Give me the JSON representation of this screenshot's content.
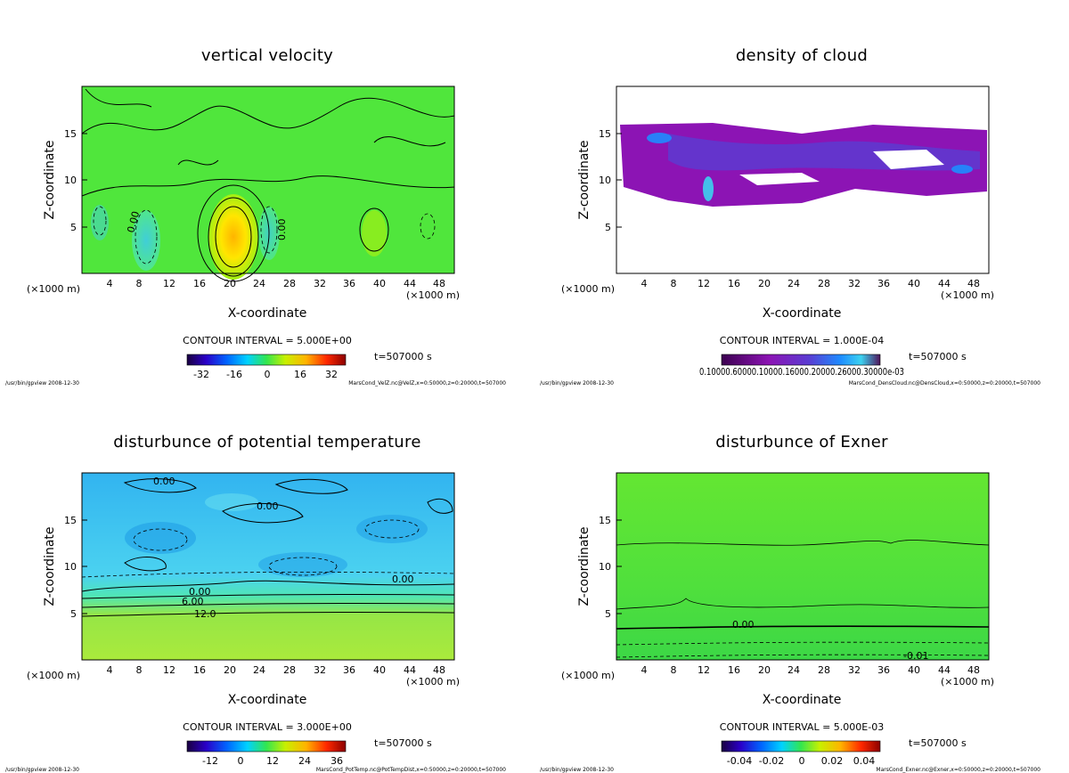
{
  "chart_data": [
    {
      "type": "heatmap",
      "title": "vertical velocity",
      "xlabel": "X-coordinate",
      "ylabel": "Z-coordinate",
      "x_unit_label": "(×1000 m)",
      "xlim": [
        0,
        50
      ],
      "ylim": [
        0,
        20
      ],
      "x_ticks": [
        "4",
        "8",
        "12",
        "16",
        "20",
        "24",
        "28",
        "32",
        "36",
        "40",
        "44",
        "48"
      ],
      "y_ticks": [
        "5",
        "10",
        "15"
      ],
      "contour_interval": "CONTOUR INTERVAL = 5.000E+00",
      "time_label": "t=507000 s",
      "colorbar_ticks": [
        "-32",
        "-16",
        "0",
        "16",
        "32"
      ],
      "contour_labels": [
        "0.00",
        "0.00"
      ],
      "colormap": "rainbow",
      "background_color": "#4ee63c",
      "footer_left": "/usr/bin/gpview  2008-12-30",
      "footer_right": "MarsCond_VelZ.nc@VelZ,x=0:50000,z=0:20000,t=507000"
    },
    {
      "type": "heatmap",
      "title": "density of cloud",
      "xlabel": "X-coordinate",
      "ylabel": "Z-coordinate",
      "x_unit_label": "(×1000 m)",
      "xlim": [
        0,
        50
      ],
      "ylim": [
        0,
        20
      ],
      "x_ticks": [
        "4",
        "8",
        "12",
        "16",
        "20",
        "24",
        "28",
        "32",
        "36",
        "40",
        "44",
        "48"
      ],
      "y_ticks": [
        "5",
        "10",
        "15"
      ],
      "contour_interval": "CONTOUR INTERVAL = 1.000E-04",
      "time_label": "t=507000 s",
      "colorbar_tick_text": "0.10000.60000.10000.16000.20000.26000.30000e-03",
      "colormap": "purple-blue",
      "background_color": "#ffffff",
      "footer_left": "/usr/bin/gpview  2008-12-30",
      "footer_right": "MarsCond_DensCloud.nc@DensCloud,x=0:50000,z=0:20000,t=507000"
    },
    {
      "type": "heatmap",
      "title": "disturbunce of potential temperature",
      "xlabel": "X-coordinate",
      "ylabel": "Z-coordinate",
      "x_unit_label": "(×1000 m)",
      "xlim": [
        0,
        50
      ],
      "ylim": [
        0,
        20
      ],
      "x_ticks": [
        "4",
        "8",
        "12",
        "16",
        "20",
        "24",
        "28",
        "32",
        "36",
        "40",
        "44",
        "48"
      ],
      "y_ticks": [
        "5",
        "10",
        "15"
      ],
      "contour_interval": "CONTOUR INTERVAL = 3.000E+00",
      "time_label": "t=507000 s",
      "colorbar_ticks": [
        "-12",
        "0",
        "12",
        "24",
        "36"
      ],
      "contour_labels": [
        "0.00",
        "0.00",
        "0.00",
        "0.00",
        "6.00",
        "12.0"
      ],
      "colormap": "rainbow",
      "background_color": "#3cc8f0",
      "footer_left": "/usr/bin/gpview  2008-12-30",
      "footer_right": "MarsCond_PotTemp.nc@PotTempDist,x=0:50000,z=0:20000,t=507000"
    },
    {
      "type": "heatmap",
      "title": "disturbunce of Exner",
      "xlabel": "X-coordinate",
      "ylabel": "Z-coordinate",
      "x_unit_label": "(×1000 m)",
      "xlim": [
        0,
        50
      ],
      "ylim": [
        0,
        20
      ],
      "x_ticks": [
        "4",
        "8",
        "12",
        "16",
        "20",
        "24",
        "28",
        "32",
        "36",
        "40",
        "44",
        "48"
      ],
      "y_ticks": [
        "5",
        "10",
        "15"
      ],
      "contour_interval": "CONTOUR INTERVAL = 5.000E-03",
      "time_label": "t=507000 s",
      "colorbar_ticks": [
        "-0.04",
        "-0.02",
        "0",
        "0.02",
        "0.04"
      ],
      "contour_labels": [
        "0.00",
        "-0.01"
      ],
      "colormap": "rainbow",
      "background_color": "#5ae63c",
      "footer_left": "/usr/bin/gpview  2008-12-30",
      "footer_right": "MarsCond_Exner.nc@Exner,x=0:50000,z=0:20000,t=507000"
    }
  ]
}
